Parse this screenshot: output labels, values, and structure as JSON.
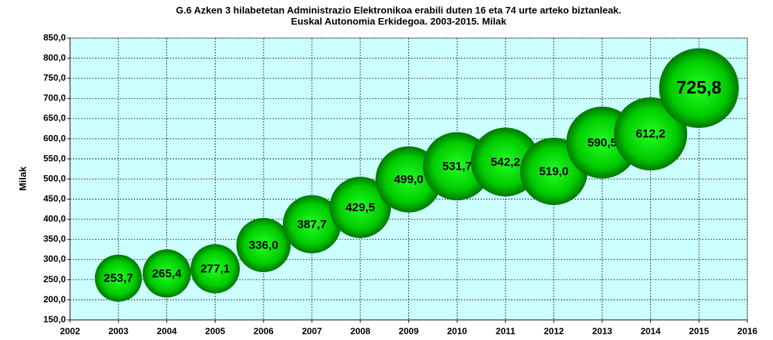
{
  "chart_data": {
    "type": "bubble",
    "title": "G.6 Azken 3 hilabetetan Administrazio Elektronikoa erabili duten 16 eta 74 urte arteko biztanleak.",
    "subtitle": "Euskal Autonomia Erkidegoa. 2003-2015. Milak",
    "y_label": "Milak",
    "x": [
      2003,
      2004,
      2005,
      2006,
      2007,
      2008,
      2009,
      2010,
      2011,
      2012,
      2013,
      2014,
      2015
    ],
    "series": [
      {
        "color": "#00cc00",
        "values": [
          253.7,
          265.4,
          277.1,
          336.0,
          387.7,
          429.5,
          499.0,
          531.7,
          542.2,
          519.0,
          590.5,
          612.2,
          725.8
        ],
        "value_labels": [
          "253,7",
          "265,4",
          "277,1",
          "336,0",
          "387,7",
          "429,5",
          "499,0",
          "531,7",
          "542,2",
          "519,0",
          "590,5",
          "612,2",
          "725,8"
        ]
      }
    ],
    "xlim": [
      2002,
      2016
    ],
    "xticks": [
      2002,
      2003,
      2004,
      2005,
      2006,
      2007,
      2008,
      2009,
      2010,
      2011,
      2012,
      2013,
      2014,
      2015,
      2016
    ],
    "ylim": [
      150,
      850
    ],
    "yticks": [
      {
        "value": 150,
        "label": "150,0"
      },
      {
        "value": 200,
        "label": "200,0"
      },
      {
        "value": 250,
        "label": "250,0"
      },
      {
        "value": 300,
        "label": "300,0"
      },
      {
        "value": 350,
        "label": "350,0"
      },
      {
        "value": 400,
        "label": "400,0"
      },
      {
        "value": 450,
        "label": "450,0"
      },
      {
        "value": 500,
        "label": "500,0"
      },
      {
        "value": 550,
        "label": "550,0"
      },
      {
        "value": 600,
        "label": "600,0"
      },
      {
        "value": 650,
        "label": "650,0"
      },
      {
        "value": 700,
        "label": "700,0"
      },
      {
        "value": 750,
        "label": "750,0"
      },
      {
        "value": 800,
        "label": "800,0"
      },
      {
        "value": 850,
        "label": "850,0"
      }
    ],
    "grid": true,
    "background": "#ccffff"
  }
}
